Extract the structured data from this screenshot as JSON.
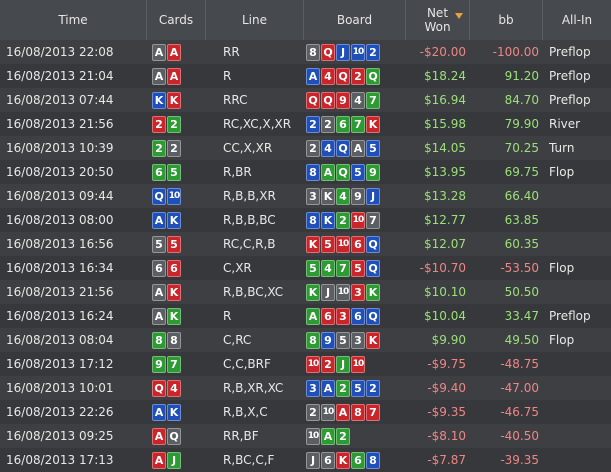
{
  "headers": {
    "time": "Time",
    "cards": "Cards",
    "line": "Line",
    "board": "Board",
    "net_won": "Net\nWon",
    "bb": "bb",
    "all_in": "All-In"
  },
  "rows": [
    {
      "time": "16/08/2013 22:08",
      "cards": [
        [
          "A",
          "s"
        ],
        [
          "A",
          "h"
        ]
      ],
      "line": "RR",
      "board": [
        [
          "8",
          "s"
        ],
        [
          "Q",
          "h"
        ],
        [
          "J",
          "d"
        ],
        [
          "10",
          "d"
        ],
        [
          "2",
          "d"
        ]
      ],
      "net": "-$20.00",
      "bb": "-100.00",
      "allin": "Preflop",
      "positive": false
    },
    {
      "time": "16/08/2013 21:04",
      "cards": [
        [
          "A",
          "s"
        ],
        [
          "A",
          "h"
        ]
      ],
      "line": "R",
      "board": [
        [
          "A",
          "d"
        ],
        [
          "4",
          "h"
        ],
        [
          "Q",
          "h"
        ],
        [
          "2",
          "h"
        ],
        [
          "Q",
          "c"
        ]
      ],
      "net": "$18.24",
      "bb": "91.20",
      "allin": "Preflop",
      "positive": true
    },
    {
      "time": "16/08/2013 07:44",
      "cards": [
        [
          "K",
          "d"
        ],
        [
          "K",
          "h"
        ]
      ],
      "line": "RRC",
      "board": [
        [
          "Q",
          "h"
        ],
        [
          "Q",
          "h"
        ],
        [
          "9",
          "h"
        ],
        [
          "4",
          "s"
        ],
        [
          "7",
          "c"
        ]
      ],
      "net": "$16.94",
      "bb": "84.70",
      "allin": "Preflop",
      "positive": true
    },
    {
      "time": "16/08/2013 21:56",
      "cards": [
        [
          "2",
          "h"
        ],
        [
          "2",
          "c"
        ]
      ],
      "line": "RC,XC,X,XR",
      "board": [
        [
          "2",
          "d"
        ],
        [
          "2",
          "s"
        ],
        [
          "6",
          "c"
        ],
        [
          "7",
          "c"
        ],
        [
          "K",
          "h"
        ]
      ],
      "net": "$15.98",
      "bb": "79.90",
      "allin": "River",
      "positive": true
    },
    {
      "time": "16/08/2013 10:39",
      "cards": [
        [
          "2",
          "c"
        ],
        [
          "2",
          "s"
        ]
      ],
      "line": "CC,X,XR",
      "board": [
        [
          "2",
          "s"
        ],
        [
          "4",
          "d"
        ],
        [
          "Q",
          "d"
        ],
        [
          "A",
          "s"
        ],
        [
          "5",
          "d"
        ]
      ],
      "net": "$14.05",
      "bb": "70.25",
      "allin": "Turn",
      "positive": true
    },
    {
      "time": "16/08/2013 20:50",
      "cards": [
        [
          "6",
          "c"
        ],
        [
          "5",
          "c"
        ]
      ],
      "line": "R,BR",
      "board": [
        [
          "8",
          "d"
        ],
        [
          "A",
          "c"
        ],
        [
          "Q",
          "c"
        ],
        [
          "5",
          "d"
        ],
        [
          "9",
          "c"
        ]
      ],
      "net": "$13.95",
      "bb": "69.75",
      "allin": "Flop",
      "positive": true
    },
    {
      "time": "16/08/2013 09:44",
      "cards": [
        [
          "Q",
          "d"
        ],
        [
          "10",
          "d"
        ]
      ],
      "line": "R,B,B,XR",
      "board": [
        [
          "3",
          "s"
        ],
        [
          "K",
          "s"
        ],
        [
          "4",
          "c"
        ],
        [
          "9",
          "s"
        ],
        [
          "J",
          "d"
        ]
      ],
      "net": "$13.28",
      "bb": "66.40",
      "allin": "",
      "positive": true
    },
    {
      "time": "16/08/2013 08:00",
      "cards": [
        [
          "A",
          "d"
        ],
        [
          "K",
          "d"
        ]
      ],
      "line": "R,B,B,BC",
      "board": [
        [
          "8",
          "d"
        ],
        [
          "K",
          "d"
        ],
        [
          "2",
          "c"
        ],
        [
          "10",
          "h"
        ],
        [
          "7",
          "s"
        ]
      ],
      "net": "$12.77",
      "bb": "63.85",
      "allin": "",
      "positive": true
    },
    {
      "time": "16/08/2013 16:56",
      "cards": [
        [
          "5",
          "s"
        ],
        [
          "5",
          "h"
        ]
      ],
      "line": "RC,C,R,B",
      "board": [
        [
          "K",
          "h"
        ],
        [
          "5",
          "h"
        ],
        [
          "10",
          "h"
        ],
        [
          "6",
          "h"
        ],
        [
          "Q",
          "d"
        ]
      ],
      "net": "$12.07",
      "bb": "60.35",
      "allin": "",
      "positive": true
    },
    {
      "time": "16/08/2013 16:34",
      "cards": [
        [
          "6",
          "s"
        ],
        [
          "6",
          "h"
        ]
      ],
      "line": "C,XR",
      "board": [
        [
          "5",
          "c"
        ],
        [
          "4",
          "c"
        ],
        [
          "7",
          "c"
        ],
        [
          "5",
          "h"
        ],
        [
          "Q",
          "d"
        ]
      ],
      "net": "-$10.70",
      "bb": "-53.50",
      "allin": "Flop",
      "positive": false
    },
    {
      "time": "16/08/2013 21:56",
      "cards": [
        [
          "A",
          "s"
        ],
        [
          "K",
          "h"
        ]
      ],
      "line": "R,B,BC,XC",
      "board": [
        [
          "K",
          "c"
        ],
        [
          "J",
          "s"
        ],
        [
          "10",
          "s"
        ],
        [
          "3",
          "h"
        ],
        [
          "K",
          "c"
        ]
      ],
      "net": "$10.10",
      "bb": "50.50",
      "allin": "",
      "positive": true
    },
    {
      "time": "16/08/2013 16:24",
      "cards": [
        [
          "A",
          "s"
        ],
        [
          "K",
          "c"
        ]
      ],
      "line": "R",
      "board": [
        [
          "A",
          "c"
        ],
        [
          "6",
          "h"
        ],
        [
          "3",
          "h"
        ],
        [
          "6",
          "d"
        ],
        [
          "Q",
          "d"
        ]
      ],
      "net": "$10.04",
      "bb": "33.47",
      "allin": "Preflop",
      "positive": true
    },
    {
      "time": "16/08/2013 08:04",
      "cards": [
        [
          "8",
          "c"
        ],
        [
          "8",
          "s"
        ]
      ],
      "line": "C,RC",
      "board": [
        [
          "8",
          "c"
        ],
        [
          "9",
          "d"
        ],
        [
          "5",
          "s"
        ],
        [
          "3",
          "s"
        ],
        [
          "K",
          "h"
        ]
      ],
      "net": "$9.90",
      "bb": "49.50",
      "allin": "Flop",
      "positive": true
    },
    {
      "time": "16/08/2013 17:12",
      "cards": [
        [
          "9",
          "c"
        ],
        [
          "7",
          "c"
        ]
      ],
      "line": "C,C,BRF",
      "board": [
        [
          "10",
          "h"
        ],
        [
          "2",
          "h"
        ],
        [
          "J",
          "c"
        ],
        [
          "10",
          "h"
        ]
      ],
      "net": "-$9.75",
      "bb": "-48.75",
      "allin": "",
      "positive": false
    },
    {
      "time": "16/08/2013 10:01",
      "cards": [
        [
          "Q",
          "h"
        ],
        [
          "4",
          "h"
        ]
      ],
      "line": "R,B,XR,XC",
      "board": [
        [
          "3",
          "d"
        ],
        [
          "A",
          "d"
        ],
        [
          "2",
          "c"
        ],
        [
          "5",
          "d"
        ],
        [
          "2",
          "d"
        ]
      ],
      "net": "-$9.40",
      "bb": "-47.00",
      "allin": "",
      "positive": false
    },
    {
      "time": "16/08/2013 22:26",
      "cards": [
        [
          "A",
          "d"
        ],
        [
          "K",
          "d"
        ]
      ],
      "line": "R,B,X,C",
      "board": [
        [
          "2",
          "s"
        ],
        [
          "10",
          "s"
        ],
        [
          "A",
          "h"
        ],
        [
          "8",
          "h"
        ],
        [
          "7",
          "h"
        ]
      ],
      "net": "-$9.35",
      "bb": "-46.75",
      "allin": "",
      "positive": false
    },
    {
      "time": "16/08/2013 09:25",
      "cards": [
        [
          "A",
          "h"
        ],
        [
          "Q",
          "s"
        ]
      ],
      "line": "RR,BF",
      "board": [
        [
          "10",
          "s"
        ],
        [
          "A",
          "c"
        ],
        [
          "2",
          "c"
        ]
      ],
      "net": "-$8.10",
      "bb": "-40.50",
      "allin": "",
      "positive": false
    },
    {
      "time": "16/08/2013 17:13",
      "cards": [
        [
          "A",
          "h"
        ],
        [
          "J",
          "c"
        ]
      ],
      "line": "R,BC,C,F",
      "board": [
        [
          "J",
          "s"
        ],
        [
          "6",
          "s"
        ],
        [
          "K",
          "h"
        ],
        [
          "6",
          "c"
        ],
        [
          "8",
          "d"
        ]
      ],
      "net": "-$7.87",
      "bb": "-39.35",
      "allin": "",
      "positive": false
    }
  ]
}
